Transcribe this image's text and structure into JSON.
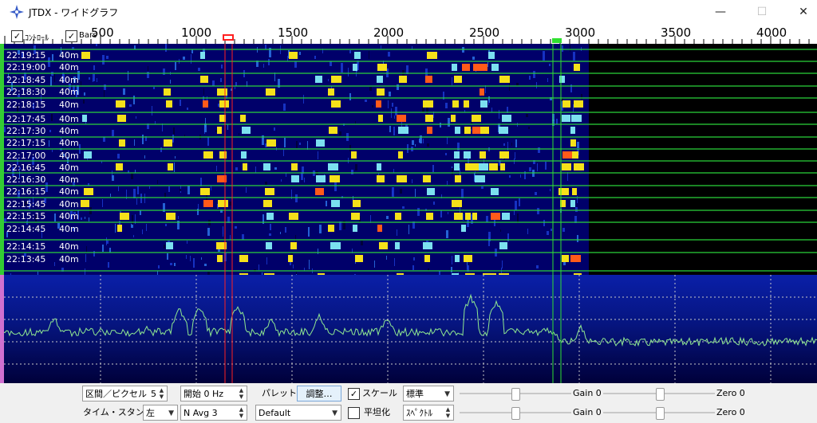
{
  "window": {
    "title": "JTDX - ワイドグラフ",
    "minimize_glyph": "—",
    "maximize_glyph": "☐",
    "close_glyph": "✕",
    "app_icon": "star-compass-icon"
  },
  "scale": {
    "ticks": [
      "500",
      "1000",
      "1500",
      "2000",
      "2500",
      "3000",
      "3500",
      "4000"
    ],
    "controls_checkbox_label": "ｺﾝﾄﾛｰﾙ",
    "controls_checked": "✓",
    "bars_checkbox_label": "Bars",
    "bars_checked": "✓"
  },
  "waterfall": {
    "rows": [
      {
        "time": "22:19:15",
        "band": "40m"
      },
      {
        "time": "22:19:00",
        "band": "40m"
      },
      {
        "time": "22:18:45",
        "band": "40m"
      },
      {
        "time": "22:18:30",
        "band": "40m"
      },
      {
        "time": "22:18:15",
        "band": "40m"
      },
      {
        "time": "22:17:45",
        "band": "40m"
      },
      {
        "time": "22:17:30",
        "band": "40m"
      },
      {
        "time": "22:17:15",
        "band": "40m"
      },
      {
        "time": "22:17:00",
        "band": "40m"
      },
      {
        "time": "22:16:45",
        "band": "40m"
      },
      {
        "time": "22:16:30",
        "band": "40m"
      },
      {
        "time": "22:16:15",
        "band": "40m"
      },
      {
        "time": "22:15:45",
        "band": "40m"
      },
      {
        "time": "22:15:15",
        "band": "40m"
      },
      {
        "time": "22:14:45",
        "band": "40m"
      },
      {
        "time": "22:14:15",
        "band": "40m"
      },
      {
        "time": "22:13:45",
        "band": "40m"
      }
    ]
  },
  "controls": {
    "bins_per_pixel_label": "区間／ピクセル",
    "bins_per_pixel_value": "5",
    "start_label": "開始 0 Hz",
    "palette_label": "パレット",
    "adjust_button": "調整…",
    "scale_checkbox_label": "スケール",
    "scale_checked": "✓",
    "scale_mode": "標準",
    "gain1_label": "Gain 0",
    "zero1_label": "Zero 0",
    "timestamp_label": "タイム・スタンプ",
    "timestamp_value": "左",
    "navg_value": "N Avg 3",
    "palette_value": "Default",
    "flatten_label": "平坦化",
    "spectrum_value": "ｽﾍﾟｸﾄﾙ",
    "gain2_label": "Gain 0",
    "zero2_label": "Zero 0"
  },
  "colors": {
    "waterfall_bg": "#00006a",
    "signal_mid": "#f5e11a",
    "signal_high": "#ff5a1a",
    "separator_line": "#2bd33b",
    "marker_red": "#ff2020",
    "marker_green": "#30e030",
    "spectrum_trace": "#90e890"
  }
}
